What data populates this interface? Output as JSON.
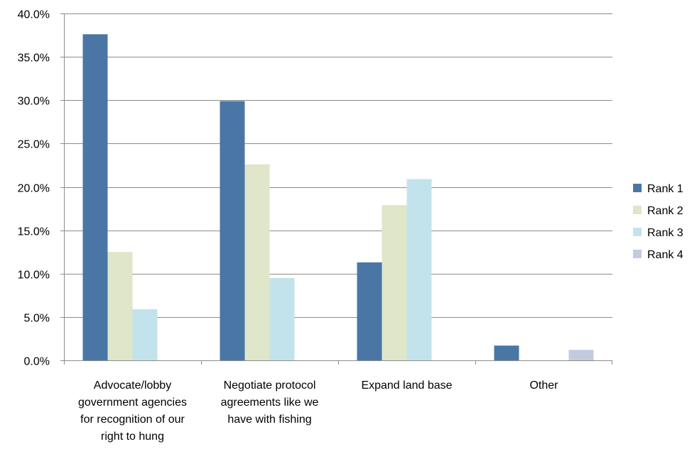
{
  "chart_data": {
    "type": "bar",
    "title": "",
    "xlabel": "",
    "ylabel": "",
    "ylim": [
      0,
      40
    ],
    "y_tick_step": 5,
    "y_tick_format": "percent_1dp",
    "grid": true,
    "legend_position": "right",
    "categories": [
      [
        "Advocate/lobby",
        "government agencies",
        "for recognition of our",
        "right to hung"
      ],
      [
        "Negotiate protocol",
        "agreements like we",
        "have with fishing"
      ],
      [
        "Expand land base"
      ],
      [
        "Other"
      ]
    ],
    "series": [
      {
        "name": "Rank 1",
        "color": "#4a76a6",
        "values": [
          37.6,
          29.9,
          11.3,
          1.7
        ]
      },
      {
        "name": "Rank 2",
        "color": "#dfe6c9",
        "values": [
          12.5,
          22.6,
          17.9,
          0
        ]
      },
      {
        "name": "Rank 3",
        "color": "#c3e3ec",
        "values": [
          5.9,
          9.5,
          20.9,
          0
        ]
      },
      {
        "name": "Rank 4",
        "color": "#c3cbdf",
        "values": [
          0,
          0,
          0,
          1.2
        ]
      }
    ]
  }
}
